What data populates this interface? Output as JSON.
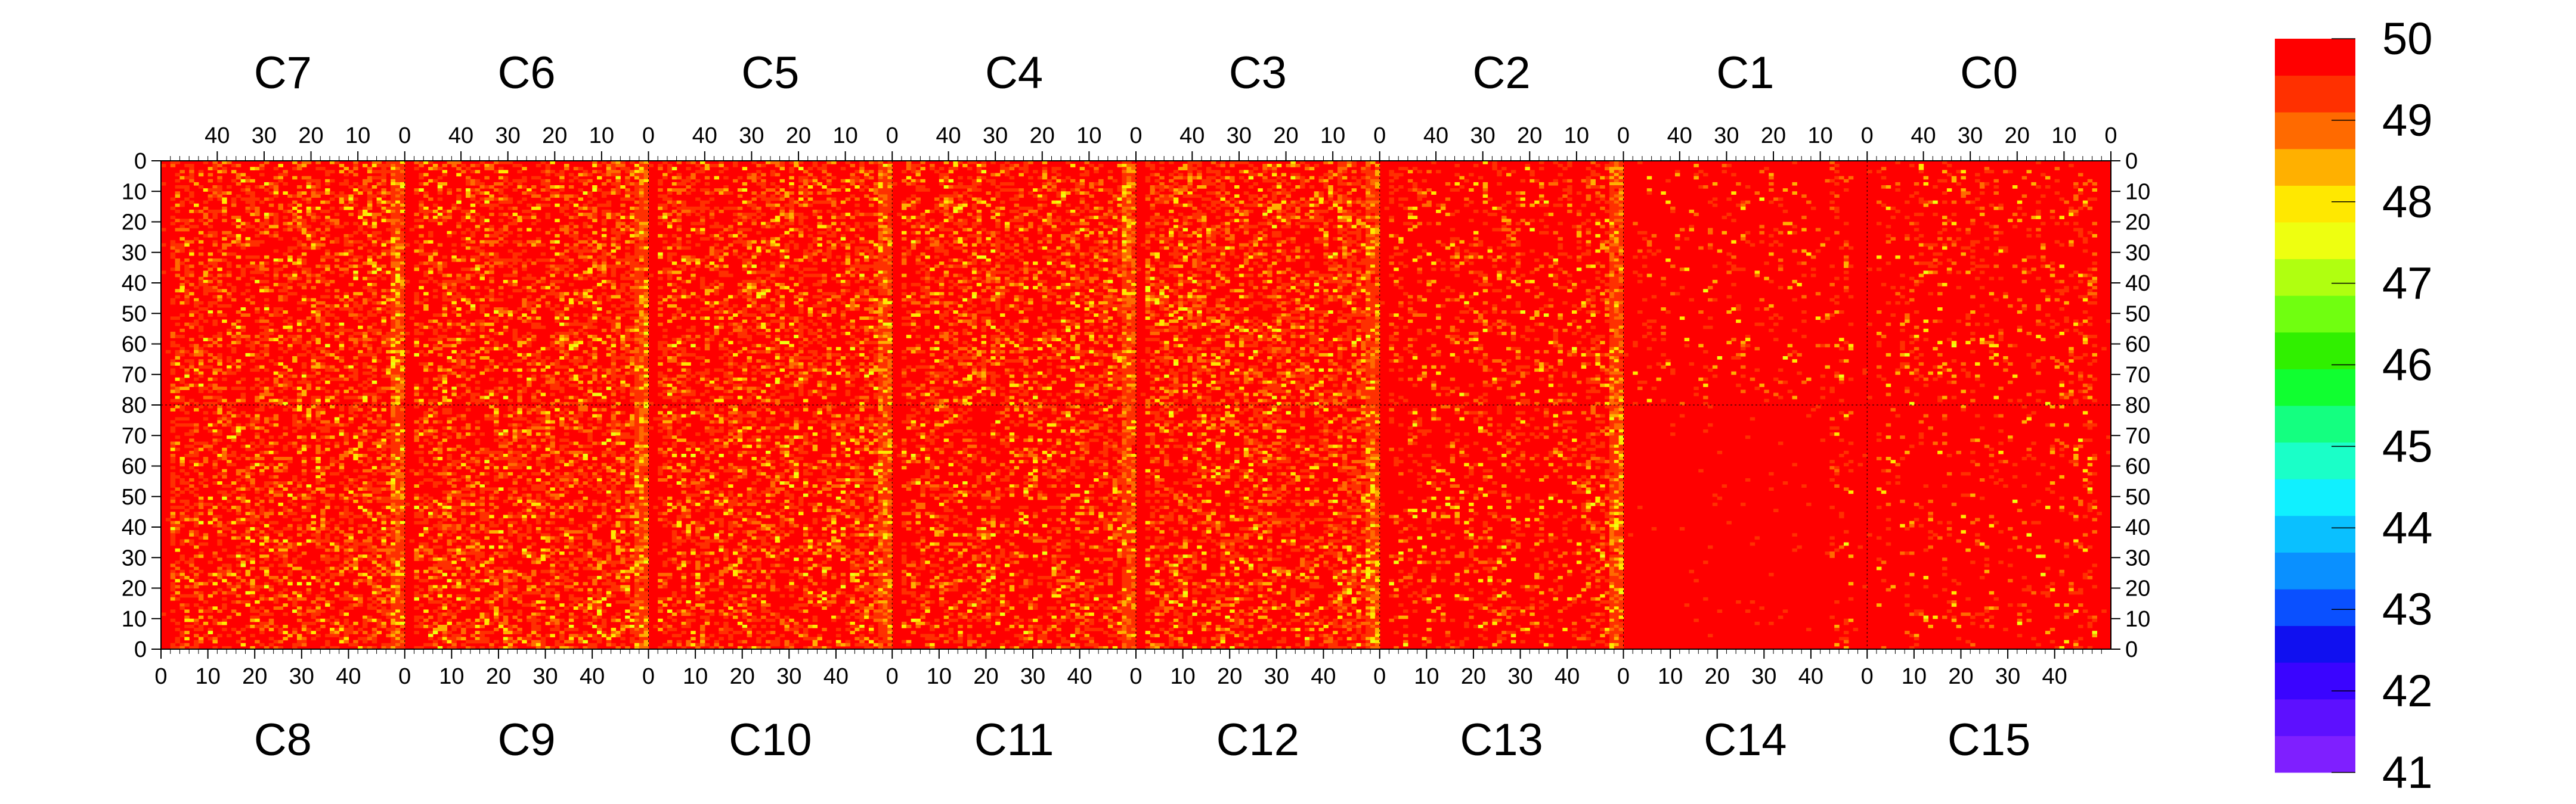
{
  "chart_data": {
    "type": "heatmap",
    "title": "",
    "xlabel": "",
    "ylabel": "",
    "zlim": [
      41,
      50
    ],
    "colorbar": {
      "labels": [
        "50",
        "49",
        "48",
        "47",
        "46",
        "45",
        "44",
        "43",
        "42",
        "41"
      ],
      "levels": [
        41,
        41.5,
        42,
        42.5,
        43,
        43.5,
        44,
        44.5,
        45,
        45.5,
        46,
        46.5,
        47,
        47.5,
        48,
        48.5,
        49,
        49.5
      ],
      "colors": [
        "#7f1fff",
        "#5d10ff",
        "#3a04ff",
        "#1010f0",
        "#0a50ff",
        "#0a90ff",
        "#0ac0ff",
        "#10f0ff",
        "#1affc8",
        "#14ff80",
        "#10ff30",
        "#30f000",
        "#70ff10",
        "#b0ff10",
        "#eeff10",
        "#ffe800",
        "#ffb000",
        "#ff6a00",
        "#ff3000",
        "#ff0000"
      ]
    },
    "top_chips": [
      "C7",
      "C6",
      "C5",
      "C4",
      "C3",
      "C2",
      "C1",
      "C0"
    ],
    "bottom_chips": [
      "C8",
      "C9",
      "C10",
      "C11",
      "C12",
      "C13",
      "C14",
      "C15"
    ],
    "top_x_ticks": [
      "40",
      "30",
      "20",
      "10",
      "0"
    ],
    "bottom_x_ticks": [
      "0",
      "10",
      "20",
      "30",
      "40"
    ],
    "y_ticks_top_half": [
      "0",
      "10",
      "20",
      "30",
      "40",
      "50",
      "60",
      "70",
      "80"
    ],
    "y_ticks_bottom_half": [
      "70",
      "60",
      "50",
      "40",
      "30",
      "20",
      "10",
      "0"
    ],
    "columns_per_chip": 52,
    "rows_per_chip": 80,
    "edge_column_mean": [
      47.5,
      48.0,
      47.8,
      47.9,
      48.0,
      47.6,
      49.9,
      49.9
    ],
    "bulk_mean_top": [
      49.3,
      49.3,
      49.3,
      49.3,
      49.2,
      49.6,
      49.8,
      49.7
    ],
    "bulk_mean_bottom": [
      49.3,
      49.2,
      49.3,
      49.4,
      49.3,
      49.6,
      49.85,
      49.8
    ]
  }
}
